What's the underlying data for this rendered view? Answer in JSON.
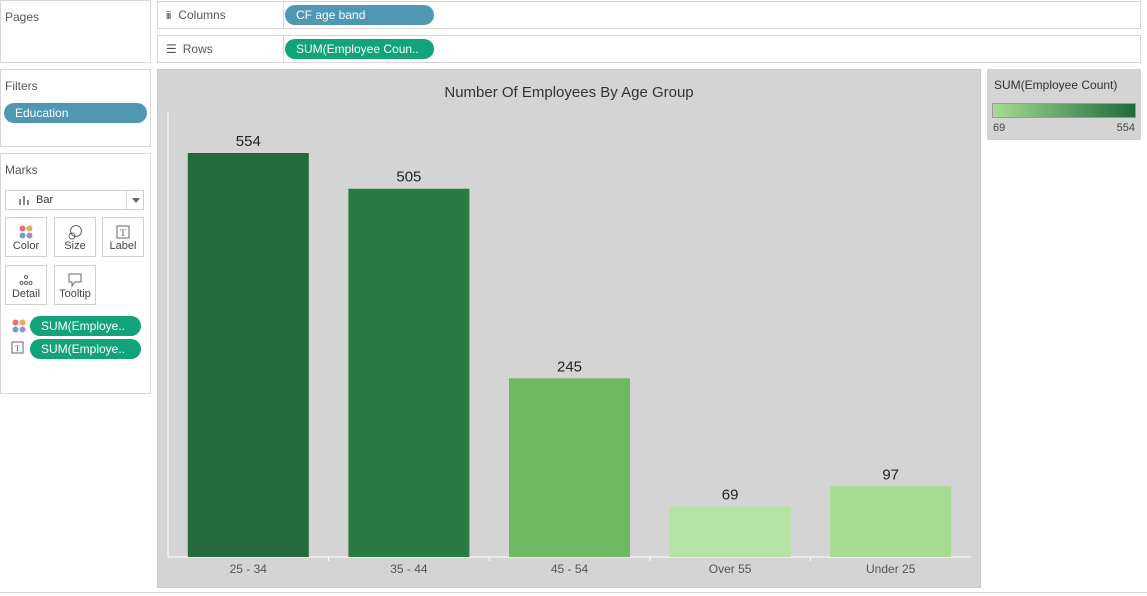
{
  "pages": {
    "title": "Pages"
  },
  "filters": {
    "title": "Filters",
    "pills": [
      "Education"
    ]
  },
  "marks": {
    "title": "Marks",
    "mark_type": "Bar",
    "buttons": [
      "Color",
      "Size",
      "Label",
      "Detail",
      "Tooltip"
    ],
    "color_pill": "SUM(Employe..",
    "label_pill": "SUM(Employe.."
  },
  "columns": {
    "label": "Columns",
    "pill": "CF age band"
  },
  "rows": {
    "label": "Rows",
    "pill": "SUM(Employee Coun.."
  },
  "legend": {
    "title": "SUM(Employee Count)",
    "min_label": "69",
    "max_label": "554",
    "color_low": "#a6dc92",
    "color_high": "#1f6a3c"
  },
  "colors": {
    "pill_blue": "#4f97b3",
    "pill_green": "#11a37a",
    "chart_bg": "#d4d4d4"
  },
  "chart_data": {
    "type": "bar",
    "title": "Number Of Employees By Age Group",
    "categories": [
      "25 - 34",
      "35 - 44",
      "45 - 54",
      "Over 55",
      "Under 25"
    ],
    "values": [
      554,
      505,
      245,
      69,
      97
    ],
    "data_labels": [
      "554",
      "505",
      "245",
      "69",
      "97"
    ],
    "bar_colors": [
      "#246a3d",
      "#2a7a43",
      "#6eb862",
      "#b5e3a3",
      "#a6dc91"
    ],
    "ylim": [
      0,
      554
    ],
    "xlabel": "",
    "ylabel": "",
    "grid": false
  }
}
